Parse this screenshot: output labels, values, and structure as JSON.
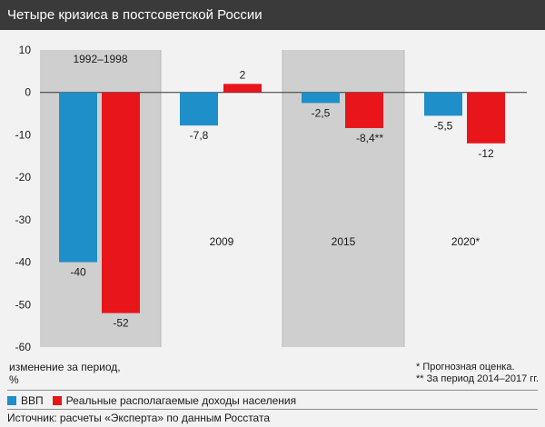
{
  "header": {
    "title": "Четыре кризиса в постсоветской России"
  },
  "chart_data": {
    "type": "bar",
    "categories": [
      "1992–1998",
      "2009",
      "2015",
      "2020*"
    ],
    "series": [
      {
        "name": "ВВП",
        "color": "#1f8fc9",
        "values": [
          -40,
          -7.8,
          -2.5,
          -5.5
        ],
        "labels": [
          "-40",
          "-7,8",
          "-2,5",
          "-5,5"
        ]
      },
      {
        "name": "Реальные располагаемые доходы населения",
        "color": "#e8151b",
        "values": [
          -52,
          2,
          -8.4,
          -12
        ],
        "labels": [
          "-52",
          "2",
          "-8,4**",
          "-12"
        ]
      }
    ],
    "ylim": [
      -60,
      10
    ],
    "yticks": [
      10,
      0,
      -10,
      -20,
      -30,
      -40,
      -50,
      -60
    ],
    "ylabel": "изменение за период,\n%",
    "category_label_positions": [
      "top",
      "middle",
      "middle",
      "middle"
    ],
    "shaded_panels": [
      true,
      false,
      true,
      false
    ],
    "grid": false,
    "legend_position": "bottom"
  },
  "notes": [
    "* Прогнозная оценка.",
    "** За период 2014–2017 гг."
  ],
  "source": "Источник: расчеты «Эксперта» по данным Росстата"
}
